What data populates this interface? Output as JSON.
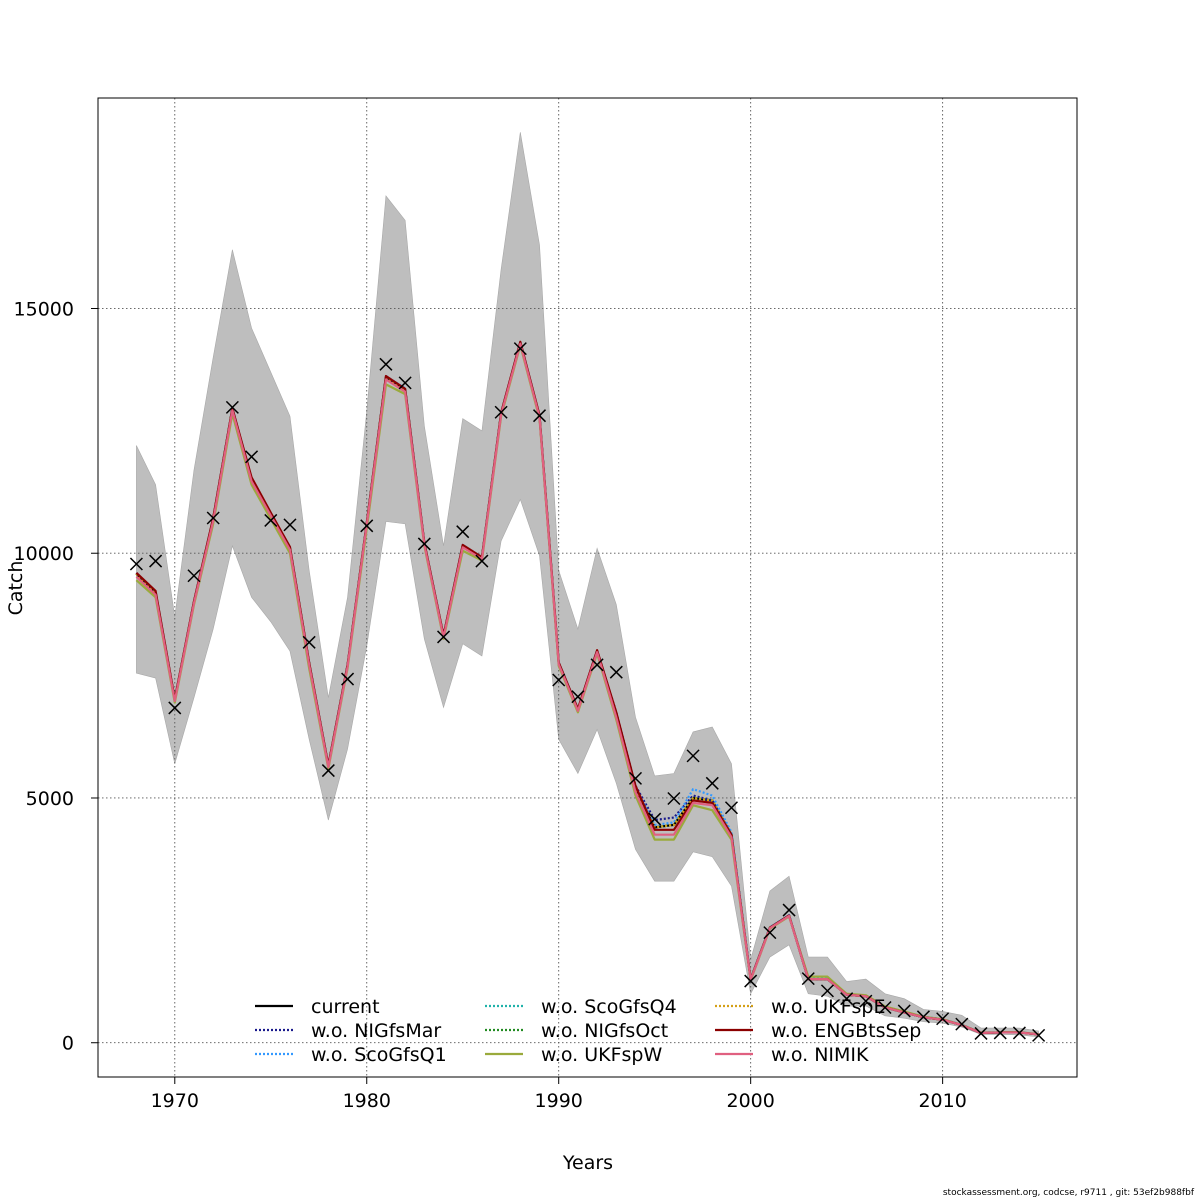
{
  "footer": "stockassessment.org, codcse, r9711 , git: 53ef2b988fbf",
  "chart_data": {
    "type": "line",
    "title": "",
    "xlabel": "Years",
    "ylabel": "Catch",
    "xlim": [
      1966,
      2017
    ],
    "ylim": [
      -700,
      19300
    ],
    "xticks": [
      1970,
      1980,
      1990,
      2000,
      2010
    ],
    "yticks": [
      0,
      5000,
      10000,
      15000
    ],
    "grid": true,
    "legend_position": "bottom",
    "x": [
      1968,
      1969,
      1970,
      1971,
      1972,
      1973,
      1974,
      1975,
      1976,
      1977,
      1978,
      1979,
      1980,
      1981,
      1982,
      1983,
      1984,
      1985,
      1986,
      1987,
      1988,
      1989,
      1990,
      1991,
      1992,
      1993,
      1994,
      1995,
      1996,
      1997,
      1998,
      1999,
      2000,
      2001,
      2002,
      2003,
      2004,
      2005,
      2006,
      2007,
      2008,
      2009,
      2010,
      2011,
      2012,
      2013,
      2014,
      2015
    ],
    "observed": {
      "marker": "x",
      "values": [
        9780,
        9840,
        6840,
        9540,
        10720,
        12980,
        11970,
        10670,
        10580,
        8180,
        5560,
        7430,
        10560,
        13860,
        13480,
        10190,
        8290,
        10440,
        9840,
        12880,
        14180,
        12810,
        7410,
        7070,
        7720,
        7570,
        5400,
        4570,
        4990,
        5860,
        5300,
        4800,
        1260,
        2250,
        2710,
        1310,
        1060,
        900,
        850,
        720,
        650,
        530,
        490,
        380,
        190,
        200,
        200,
        150
      ]
    },
    "confidence_band": {
      "name": "",
      "color": "#bebebe",
      "lower": [
        7550,
        7450,
        5700,
        7050,
        8450,
        10150,
        9100,
        8600,
        8000,
        6200,
        4550,
        6000,
        8100,
        10650,
        10600,
        8250,
        6850,
        8150,
        7900,
        10250,
        11100,
        9950,
        6200,
        5500,
        6400,
        5300,
        3950,
        3300,
        3300,
        3900,
        3800,
        3200,
        1000,
        1750,
        2000,
        1000,
        950,
        750,
        750,
        550,
        500,
        430,
        400,
        320,
        170,
        170,
        160,
        120
      ],
      "upper": [
        12200,
        11400,
        8700,
        11700,
        14000,
        16200,
        14600,
        13700,
        12800,
        9650,
        7050,
        9100,
        12900,
        17300,
        16800,
        12600,
        10150,
        12750,
        12500,
        15800,
        18600,
        16300,
        9650,
        8450,
        10100,
        8950,
        6650,
        5450,
        5500,
        6350,
        6450,
        5700,
        1700,
        3100,
        3400,
        1750,
        1750,
        1250,
        1300,
        1000,
        900,
        680,
        640,
        560,
        300,
        300,
        300,
        240
      ]
    },
    "series": [
      {
        "name": "current",
        "color": "#000000",
        "dash": "solid",
        "values": [
          9580,
          9200,
          7000,
          9000,
          10700,
          12950,
          11500,
          10800,
          10100,
          7750,
          5650,
          7700,
          10600,
          13600,
          13350,
          10200,
          8300,
          10150,
          9900,
          12850,
          14300,
          12800,
          7750,
          6800,
          8000,
          6700,
          5200,
          4400,
          4450,
          5000,
          4950,
          4250,
          1300,
          2350,
          2600,
          1300,
          1300,
          980,
          950,
          720,
          620,
          520,
          470,
          360,
          200,
          210,
          210,
          170
        ]
      },
      {
        "name": "w.o. NIGfsMar",
        "color": "#1a1a8c",
        "dash": "dotted",
        "values": [
          9580,
          9200,
          7000,
          9000,
          10700,
          12950,
          11500,
          10800,
          10100,
          7750,
          5650,
          7700,
          10600,
          13600,
          13350,
          10200,
          8300,
          10150,
          9900,
          12850,
          14300,
          12800,
          7750,
          6800,
          8000,
          6750,
          5250,
          4550,
          4600,
          5050,
          4950,
          4250,
          1300,
          2350,
          2600,
          1300,
          1300,
          980,
          950,
          720,
          620,
          520,
          470,
          360,
          200,
          210,
          210,
          170
        ]
      },
      {
        "name": "w.o. ScoGfsQ1",
        "color": "#3399ff",
        "dash": "dotted",
        "values": [
          9600,
          9220,
          7020,
          9020,
          10720,
          12970,
          11520,
          10820,
          10120,
          7770,
          5670,
          7720,
          10620,
          13620,
          13370,
          10220,
          8320,
          10170,
          9920,
          12870,
          14320,
          12820,
          7770,
          6820,
          8020,
          6720,
          5220,
          4450,
          4500,
          5180,
          5050,
          4300,
          1310,
          2360,
          2610,
          1310,
          1310,
          990,
          960,
          730,
          630,
          530,
          480,
          370,
          205,
          215,
          215,
          175
        ]
      },
      {
        "name": "w.o. ScoGfsQ4",
        "color": "#20b2aa",
        "dash": "dotted",
        "values": [
          9580,
          9200,
          7000,
          9000,
          10700,
          12950,
          11500,
          10800,
          10100,
          7750,
          5650,
          7700,
          10600,
          13600,
          13350,
          10200,
          8300,
          10150,
          9900,
          12850,
          14300,
          12800,
          7750,
          6800,
          8000,
          6700,
          5200,
          4400,
          4450,
          5000,
          4950,
          4250,
          1300,
          2350,
          2600,
          1300,
          1300,
          980,
          950,
          720,
          620,
          520,
          470,
          360,
          200,
          210,
          210,
          170
        ]
      },
      {
        "name": "w.o. NIGfsOct",
        "color": "#228b22",
        "dash": "dotted",
        "values": [
          9580,
          9200,
          7000,
          9000,
          10700,
          12950,
          11500,
          10800,
          10100,
          7750,
          5650,
          7700,
          10600,
          13600,
          13350,
          10200,
          8300,
          10150,
          9900,
          12850,
          14300,
          12800,
          7750,
          6800,
          8000,
          6700,
          5200,
          4400,
          4450,
          5000,
          4950,
          4250,
          1300,
          2350,
          2600,
          1300,
          1300,
          980,
          950,
          720,
          620,
          520,
          470,
          360,
          200,
          210,
          210,
          170
        ]
      },
      {
        "name": "w.o. UKFspW",
        "color": "#9aaa3c",
        "dash": "solid",
        "values": [
          9450,
          9100,
          6950,
          8950,
          10600,
          12850,
          11400,
          10700,
          10000,
          7650,
          5600,
          7650,
          10500,
          13450,
          13250,
          10150,
          8250,
          10050,
          9850,
          12800,
          14250,
          12750,
          7700,
          6750,
          7950,
          6600,
          5050,
          4150,
          4150,
          4850,
          4750,
          4150,
          1280,
          2330,
          2580,
          1350,
          1350,
          1000,
          970,
          740,
          640,
          530,
          480,
          365,
          205,
          215,
          215,
          175
        ]
      },
      {
        "name": "w.o. UKFspE",
        "color": "#d4a017",
        "dash": "dotted",
        "values": [
          9580,
          9200,
          7000,
          9000,
          10700,
          12950,
          11500,
          10800,
          10100,
          7750,
          5650,
          7700,
          10600,
          13600,
          13350,
          10200,
          8300,
          10150,
          9900,
          12850,
          14300,
          12800,
          7750,
          6800,
          8000,
          6700,
          5200,
          4400,
          4450,
          5000,
          4950,
          4250,
          1300,
          2350,
          2600,
          1300,
          1300,
          980,
          950,
          720,
          620,
          520,
          470,
          360,
          200,
          210,
          210,
          170
        ]
      },
      {
        "name": "w.o. ENGBtsSep",
        "color": "#8b0000",
        "dash": "solid",
        "values": [
          9600,
          9230,
          7020,
          9020,
          10720,
          12960,
          11550,
          10830,
          10130,
          7770,
          5670,
          7720,
          10620,
          13620,
          13360,
          10220,
          8320,
          10170,
          9920,
          12870,
          14320,
          12820,
          7770,
          6820,
          8020,
          6750,
          5250,
          4350,
          4350,
          4950,
          4900,
          4250,
          1300,
          2350,
          2600,
          1300,
          1300,
          980,
          950,
          720,
          620,
          520,
          470,
          360,
          200,
          210,
          210,
          170
        ]
      },
      {
        "name": "w.o. NIMIK",
        "color": "#e06080",
        "dash": "solid",
        "values": [
          9520,
          9150,
          6980,
          8980,
          10660,
          12920,
          11470,
          10770,
          10070,
          7720,
          5630,
          7680,
          10580,
          13550,
          13300,
          10180,
          8280,
          10120,
          9880,
          12830,
          14280,
          12780,
          7730,
          6780,
          7980,
          6650,
          5120,
          4250,
          4250,
          4900,
          4850,
          4200,
          1290,
          2340,
          2590,
          1300,
          1300,
          980,
          950,
          720,
          620,
          520,
          470,
          360,
          200,
          210,
          210,
          170
        ]
      }
    ]
  }
}
